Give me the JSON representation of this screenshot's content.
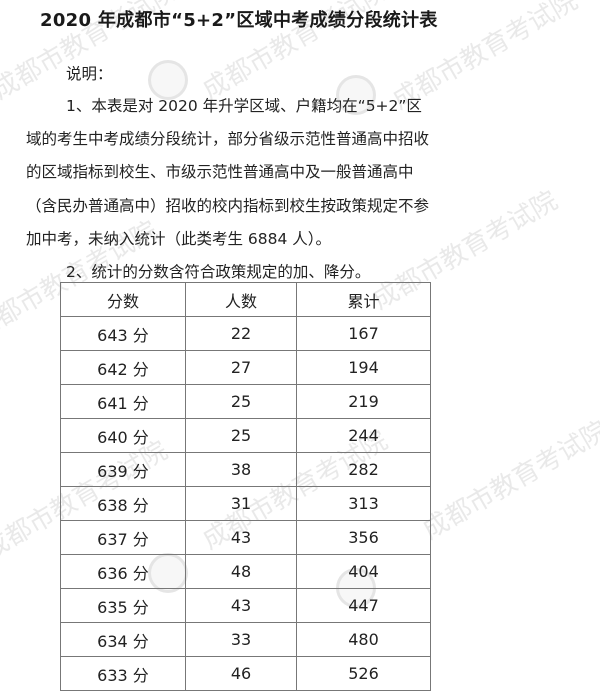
{
  "title": "2020 年成都市“5+2”区域中考成绩分段统计表",
  "notes": {
    "heading": "说明：",
    "lines": [
      "1、本表是对 2020 年升学区域、户籍均在“5+2”区",
      "域的考生中考成绩分段统计，部分省级示范性普通高中招收",
      "的区域指标到校生、市级示范性普通高中及一般普通高中",
      "（含民办普通高中）招收的校内指标到校生按政策规定不参",
      "加中考，未纳入统计（此类考生 6884 人）。",
      "2、统计的分数含符合政策规定的加、降分。"
    ]
  },
  "table": {
    "headers": [
      "分数",
      "人数",
      "累计"
    ],
    "rows": [
      [
        "643 分",
        "22",
        "167"
      ],
      [
        "642 分",
        "27",
        "194"
      ],
      [
        "641 分",
        "25",
        "219"
      ],
      [
        "640 分",
        "25",
        "244"
      ],
      [
        "639 分",
        "38",
        "282"
      ],
      [
        "638 分",
        "31",
        "313"
      ],
      [
        "637 分",
        "43",
        "356"
      ],
      [
        "636 分",
        "48",
        "404"
      ],
      [
        "635 分",
        "43",
        "447"
      ],
      [
        "634 分",
        "33",
        "480"
      ],
      [
        "633 分",
        "46",
        "526"
      ]
    ]
  },
  "watermark": "成都市教育考试院"
}
